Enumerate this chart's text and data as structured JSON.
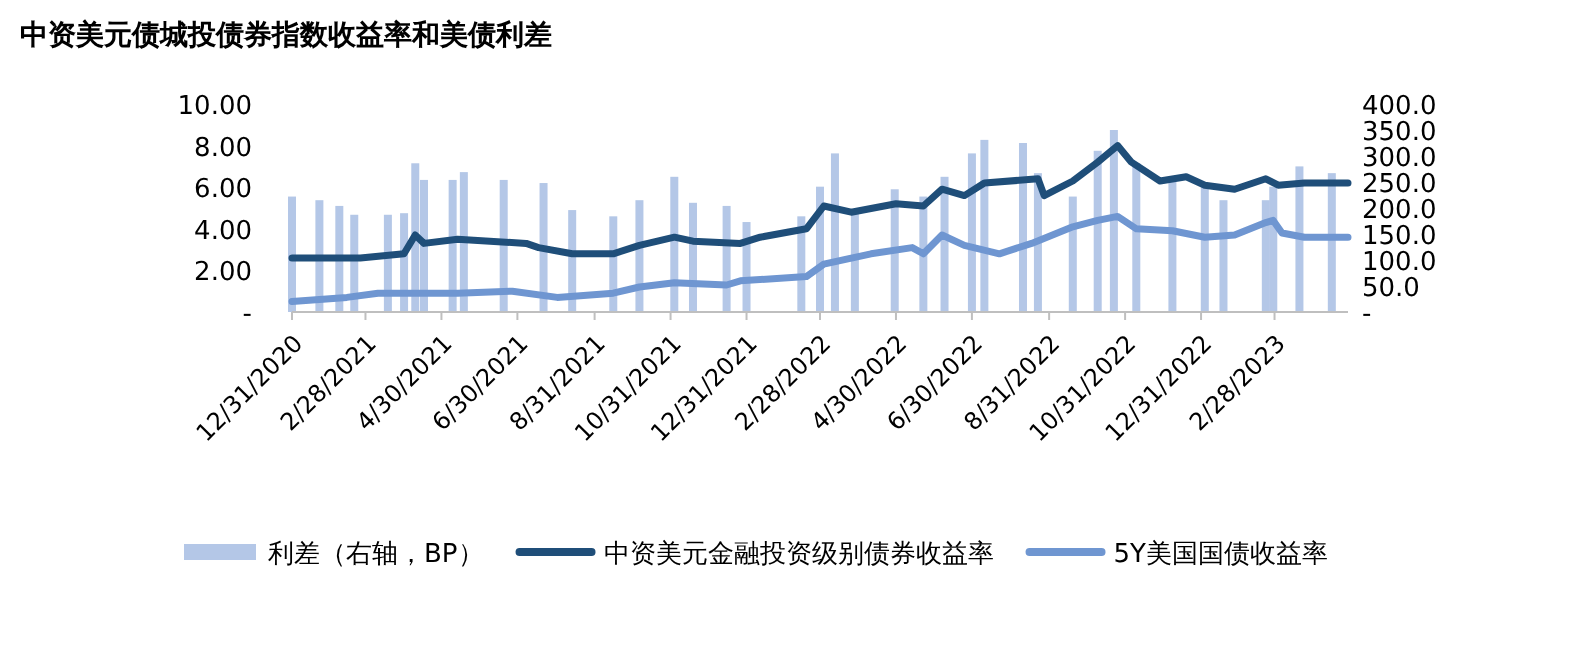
{
  "chart_data": {
    "type": "line",
    "title": "中资美元债城投债券指数收益率和美债利差",
    "legend": "bottom",
    "grid": false,
    "marker": "none",
    "line_style": "solid",
    "xlim": [
      "2020-12-31",
      "2023-04-28"
    ],
    "xticks": [
      {
        "value": "2020-12-31",
        "label": "12/31/2020"
      },
      {
        "value": "2021-02-28",
        "label": "2/28/2021"
      },
      {
        "value": "2021-04-30",
        "label": "4/30/2021"
      },
      {
        "value": "2021-06-30",
        "label": "6/30/2021"
      },
      {
        "value": "2021-08-31",
        "label": "8/31/2021"
      },
      {
        "value": "2021-10-31",
        "label": "10/31/2021"
      },
      {
        "value": "2021-12-31",
        "label": "12/31/2021"
      },
      {
        "value": "2022-02-28",
        "label": "2/28/2022"
      },
      {
        "value": "2022-04-30",
        "label": "4/30/2022"
      },
      {
        "value": "2022-06-30",
        "label": "6/30/2022"
      },
      {
        "value": "2022-08-31",
        "label": "8/31/2022"
      },
      {
        "value": "2022-10-31",
        "label": "10/31/2022"
      },
      {
        "value": "2022-12-31",
        "label": "12/31/2022"
      },
      {
        "value": "2023-02-28",
        "label": "2/28/2023"
      }
    ],
    "ylim": [
      0,
      10
    ],
    "yticks": [
      {
        "value": 0,
        "label": "-"
      },
      {
        "value": 2,
        "label": "2.00"
      },
      {
        "value": 4,
        "label": "4.00"
      },
      {
        "value": 6,
        "label": "6.00"
      },
      {
        "value": 8,
        "label": "8.00"
      },
      {
        "value": 10,
        "label": "10.00"
      }
    ],
    "y2lim": [
      0,
      400
    ],
    "y2ticks": [
      {
        "value": 0,
        "label": "-"
      },
      {
        "value": 50,
        "label": "50.0"
      },
      {
        "value": 100,
        "label": "100.0"
      },
      {
        "value": 150,
        "label": "150.0"
      },
      {
        "value": 200,
        "label": "200.0"
      },
      {
        "value": 250,
        "label": "250.0"
      },
      {
        "value": 300,
        "label": "300.0"
      },
      {
        "value": 350,
        "label": "350.0"
      },
      {
        "value": 400,
        "label": "400.0"
      }
    ],
    "series": [
      {
        "name": "利差（右轴，BP）",
        "type": "bar",
        "axis": "y2",
        "color": "#b4c7e7",
        "x": [
          "2020-12-31",
          "2021-01-22",
          "2021-02-07",
          "2021-02-19",
          "2021-03-18",
          "2021-03-31",
          "2021-04-09",
          "2021-04-16",
          "2021-05-09",
          "2021-05-18",
          "2021-06-19",
          "2021-07-21",
          "2021-08-13",
          "2021-09-15",
          "2021-10-06",
          "2021-11-03",
          "2021-11-18",
          "2021-12-15",
          "2021-12-31",
          "2022-02-13",
          "2022-02-28",
          "2022-03-12",
          "2022-03-28",
          "2022-04-29",
          "2022-05-22",
          "2022-06-08",
          "2022-06-30",
          "2022-07-10",
          "2022-08-10",
          "2022-08-22",
          "2022-09-19",
          "2022-10-09",
          "2022-10-22",
          "2022-11-09",
          "2022-12-08",
          "2023-01-03",
          "2023-01-18",
          "2023-02-21",
          "2023-02-27",
          "2023-03-20",
          "2023-04-15"
        ],
        "values": [
          222,
          215,
          204,
          187,
          187,
          190,
          286,
          254,
          254,
          269,
          254,
          248,
          196,
          184,
          215,
          260,
          210,
          204,
          173,
          184,
          241,
          305,
          190,
          236,
          222,
          260,
          305,
          331,
          325,
          267,
          222,
          310,
          350,
          286,
          254,
          241,
          215,
          215,
          241,
          280,
          267
        ]
      },
      {
        "name": "中资美元金融投资级别债券收益率",
        "axis": "y",
        "color": "#1f4e79",
        "x": [
          "2020-12-31",
          "2021-02-24",
          "2021-03-31",
          "2021-04-09",
          "2021-04-16",
          "2021-05-13",
          "2021-07-07",
          "2021-07-17",
          "2021-08-13",
          "2021-09-15",
          "2021-10-06",
          "2021-11-03",
          "2021-11-18",
          "2021-12-26",
          "2022-01-11",
          "2022-02-17",
          "2022-03-03",
          "2022-03-25",
          "2022-04-30",
          "2022-05-22",
          "2022-06-06",
          "2022-06-24",
          "2022-07-10",
          "2022-08-22",
          "2022-08-27",
          "2022-09-19",
          "2022-10-09",
          "2022-10-25",
          "2022-11-05",
          "2022-11-28",
          "2022-12-19",
          "2023-01-03",
          "2023-01-27",
          "2023-02-21",
          "2023-03-03",
          "2023-03-24",
          "2023-04-15",
          "2023-04-28"
        ],
        "values": [
          2.6,
          2.6,
          2.8,
          3.7,
          3.3,
          3.5,
          3.3,
          3.1,
          2.8,
          2.8,
          3.2,
          3.6,
          3.4,
          3.3,
          3.6,
          4.0,
          5.1,
          4.8,
          5.2,
          5.1,
          5.9,
          5.6,
          6.2,
          6.4,
          5.6,
          6.3,
          7.2,
          8.0,
          7.2,
          6.3,
          6.5,
          6.1,
          5.9,
          6.4,
          6.1,
          6.2,
          6.2,
          6.2
        ]
      },
      {
        "name": "5Y美国国债收益率",
        "axis": "y",
        "color": "#6f96d1",
        "x": [
          "2020-12-31",
          "2021-02-13",
          "2021-03-10",
          "2021-05-13",
          "2021-06-26",
          "2021-08-01",
          "2021-09-15",
          "2021-10-06",
          "2021-11-03",
          "2021-12-15",
          "2021-12-26",
          "2022-02-17",
          "2022-03-03",
          "2022-04-10",
          "2022-05-13",
          "2022-05-22",
          "2022-06-06",
          "2022-06-24",
          "2022-07-22",
          "2022-08-17",
          "2022-09-19",
          "2022-10-09",
          "2022-10-25",
          "2022-11-09",
          "2022-12-08",
          "2023-01-03",
          "2023-01-27",
          "2023-02-21",
          "2023-02-27",
          "2023-03-06",
          "2023-03-24",
          "2023-04-15",
          "2023-04-28"
        ],
        "values": [
          0.5,
          0.7,
          0.9,
          0.9,
          1.0,
          0.7,
          0.9,
          1.2,
          1.4,
          1.3,
          1.5,
          1.7,
          2.3,
          2.8,
          3.1,
          2.8,
          3.7,
          3.2,
          2.8,
          3.3,
          4.1,
          4.4,
          4.6,
          4.0,
          3.9,
          3.6,
          3.7,
          4.3,
          4.4,
          3.8,
          3.6,
          3.6,
          3.6
        ]
      }
    ]
  }
}
